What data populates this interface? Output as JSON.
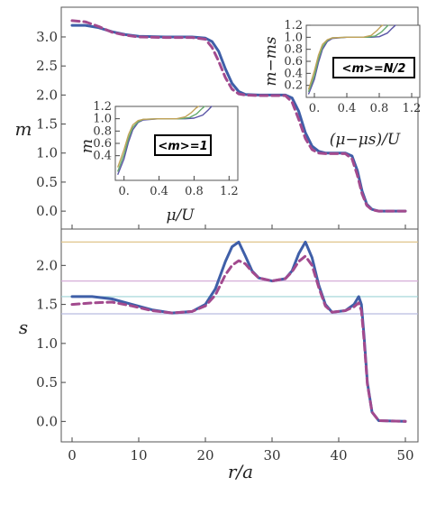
{
  "chart_data": [
    {
      "id": "top",
      "type": "line",
      "ylabel": "m",
      "xlim": [
        0,
        50
      ],
      "ylim": [
        -0.2,
        3.45
      ],
      "yticks": [
        "0.0",
        "0.5",
        "1.0",
        "1.5",
        "2.0",
        "2.5",
        "3.0"
      ],
      "series": [
        {
          "style": "solid",
          "color": "#3f5fa8",
          "points": [
            [
              0,
              3.2
            ],
            [
              2,
              3.2
            ],
            [
              4,
              3.16
            ],
            [
              6,
              3.09
            ],
            [
              8,
              3.04
            ],
            [
              10,
              3.01
            ],
            [
              14,
              3.0
            ],
            [
              18,
              3.0
            ],
            [
              20,
              2.98
            ],
            [
              21,
              2.92
            ],
            [
              22,
              2.75
            ],
            [
              23,
              2.45
            ],
            [
              24,
              2.2
            ],
            [
              25,
              2.06
            ],
            [
              26,
              2.01
            ],
            [
              28,
              2.0
            ],
            [
              32,
              2.0
            ],
            [
              33,
              1.95
            ],
            [
              34,
              1.72
            ],
            [
              35,
              1.35
            ],
            [
              36,
              1.12
            ],
            [
              37,
              1.03
            ],
            [
              38,
              1.0
            ],
            [
              41,
              1.0
            ],
            [
              42,
              0.95
            ],
            [
              42.8,
              0.7
            ],
            [
              43.5,
              0.35
            ],
            [
              44.2,
              0.12
            ],
            [
              45,
              0.03
            ],
            [
              46,
              0.0
            ],
            [
              50,
              0.0
            ]
          ]
        },
        {
          "style": "dashed",
          "color": "#a24a8e",
          "points": [
            [
              0,
              3.28
            ],
            [
              2,
              3.26
            ],
            [
              4,
              3.18
            ],
            [
              6,
              3.08
            ],
            [
              8,
              3.03
            ],
            [
              10,
              3.0
            ],
            [
              14,
              2.99
            ],
            [
              18,
              2.99
            ],
            [
              20,
              2.96
            ],
            [
              21,
              2.82
            ],
            [
              22,
              2.58
            ],
            [
              23,
              2.3
            ],
            [
              24,
              2.1
            ],
            [
              25,
              2.02
            ],
            [
              26,
              2.0
            ],
            [
              28,
              1.99
            ],
            [
              32,
              1.99
            ],
            [
              33,
              1.88
            ],
            [
              34,
              1.58
            ],
            [
              35,
              1.25
            ],
            [
              36,
              1.06
            ],
            [
              37,
              1.0
            ],
            [
              38,
              0.99
            ],
            [
              41,
              0.99
            ],
            [
              42,
              0.9
            ],
            [
              42.8,
              0.62
            ],
            [
              43.5,
              0.3
            ],
            [
              44.2,
              0.1
            ],
            [
              45,
              0.02
            ],
            [
              46,
              0.0
            ],
            [
              50,
              0.0
            ]
          ]
        }
      ]
    },
    {
      "id": "bottom",
      "type": "line",
      "xlabel": "r/a",
      "ylabel": "s",
      "xlim": [
        0,
        50
      ],
      "ylim": [
        -0.1,
        2.42
      ],
      "xticks": [
        "0",
        "10",
        "20",
        "30",
        "40",
        "50"
      ],
      "yticks": [
        "0.0",
        "0.5",
        "1.0",
        "1.5",
        "2.0"
      ],
      "hlines": [
        {
          "y": 2.3,
          "color": "#e0c58a"
        },
        {
          "y": 1.8,
          "color": "#d6aed8"
        },
        {
          "y": 1.6,
          "color": "#9ed3d6"
        },
        {
          "y": 1.38,
          "color": "#b9bce0"
        }
      ],
      "series": [
        {
          "style": "solid",
          "color": "#3f5fa8",
          "points": [
            [
              0,
              1.6
            ],
            [
              3,
              1.6
            ],
            [
              6,
              1.57
            ],
            [
              9,
              1.5
            ],
            [
              12,
              1.43
            ],
            [
              15,
              1.39
            ],
            [
              18,
              1.41
            ],
            [
              20,
              1.5
            ],
            [
              21.5,
              1.7
            ],
            [
              23,
              2.05
            ],
            [
              24,
              2.24
            ],
            [
              25,
              2.3
            ],
            [
              26,
              2.12
            ],
            [
              27,
              1.93
            ],
            [
              28,
              1.84
            ],
            [
              30,
              1.8
            ],
            [
              32,
              1.83
            ],
            [
              33,
              1.93
            ],
            [
              34,
              2.15
            ],
            [
              35,
              2.3
            ],
            [
              36,
              2.1
            ],
            [
              37,
              1.75
            ],
            [
              38,
              1.5
            ],
            [
              39,
              1.4
            ],
            [
              41,
              1.42
            ],
            [
              42.3,
              1.5
            ],
            [
              43,
              1.6
            ],
            [
              43.4,
              1.5
            ],
            [
              43.8,
              1.1
            ],
            [
              44.3,
              0.5
            ],
            [
              45,
              0.12
            ],
            [
              46,
              0.01
            ],
            [
              50,
              0.0
            ]
          ]
        },
        {
          "style": "dashed",
          "color": "#a24a8e",
          "points": [
            [
              0,
              1.5
            ],
            [
              3,
              1.52
            ],
            [
              6,
              1.53
            ],
            [
              9,
              1.48
            ],
            [
              12,
              1.42
            ],
            [
              15,
              1.39
            ],
            [
              18,
              1.41
            ],
            [
              20,
              1.48
            ],
            [
              21.5,
              1.62
            ],
            [
              23,
              1.88
            ],
            [
              24,
              2.0
            ],
            [
              25,
              2.06
            ],
            [
              26,
              2.02
            ],
            [
              27,
              1.92
            ],
            [
              28,
              1.84
            ],
            [
              30,
              1.8
            ],
            [
              32,
              1.83
            ],
            [
              33,
              1.92
            ],
            [
              34,
              2.05
            ],
            [
              35,
              2.12
            ],
            [
              36,
              2.0
            ],
            [
              37,
              1.72
            ],
            [
              38,
              1.48
            ],
            [
              39,
              1.4
            ],
            [
              41,
              1.42
            ],
            [
              42.3,
              1.47
            ],
            [
              43,
              1.52
            ],
            [
              43.4,
              1.42
            ],
            [
              43.8,
              1.05
            ],
            [
              44.3,
              0.48
            ],
            [
              45,
              0.12
            ],
            [
              46,
              0.01
            ],
            [
              50,
              0.0
            ]
          ]
        }
      ]
    },
    {
      "id": "inset-left",
      "type": "line",
      "xlabel": "μ/U",
      "ylabel": "m",
      "annotation": "<m>=1",
      "xlim": [
        -0.1,
        1.3
      ],
      "ylim": [
        0,
        1.2
      ],
      "xticks": [
        "0.",
        "0.4",
        "0.8",
        "1.2"
      ],
      "yticks": [
        "0.4",
        "0.6",
        "0.8",
        "1.0",
        "1.2"
      ],
      "series": [
        {
          "color": "#5a55a6",
          "points": [
            [
              -0.07,
              0.1
            ],
            [
              0,
              0.35
            ],
            [
              0.05,
              0.62
            ],
            [
              0.1,
              0.82
            ],
            [
              0.16,
              0.94
            ],
            [
              0.22,
              0.98
            ],
            [
              0.4,
              1.0
            ],
            [
              0.7,
              1.0
            ],
            [
              0.8,
              1.01
            ],
            [
              0.9,
              1.06
            ],
            [
              0.96,
              1.14
            ],
            [
              1.0,
              1.2
            ]
          ]
        },
        {
          "color": "#66aa6e",
          "points": [
            [
              -0.07,
              0.15
            ],
            [
              0,
              0.42
            ],
            [
              0.05,
              0.68
            ],
            [
              0.1,
              0.86
            ],
            [
              0.16,
              0.95
            ],
            [
              0.22,
              0.99
            ],
            [
              0.4,
              1.0
            ],
            [
              0.65,
              1.0
            ],
            [
              0.75,
              1.02
            ],
            [
              0.83,
              1.08
            ],
            [
              0.88,
              1.15
            ],
            [
              0.92,
              1.2
            ]
          ]
        },
        {
          "color": "#c2a35a",
          "points": [
            [
              -0.07,
              0.22
            ],
            [
              0,
              0.5
            ],
            [
              0.05,
              0.74
            ],
            [
              0.1,
              0.9
            ],
            [
              0.16,
              0.97
            ],
            [
              0.22,
              0.99
            ],
            [
              0.4,
              1.0
            ],
            [
              0.6,
              1.0
            ],
            [
              0.7,
              1.03
            ],
            [
              0.77,
              1.1
            ],
            [
              0.82,
              1.17
            ],
            [
              0.85,
              1.2
            ]
          ]
        }
      ]
    },
    {
      "id": "inset-right",
      "type": "line",
      "xlabel": "(μ−μs)/U",
      "ylabel": "m−ms",
      "annotation": "<m>=N/2",
      "xlim": [
        -0.1,
        1.3
      ],
      "ylim": [
        0,
        1.2
      ],
      "xticks": [
        "0.",
        "0.4",
        "0.8",
        "1.2"
      ],
      "yticks": [
        "0.2",
        "0.4",
        "0.6",
        "0.8",
        "1.0",
        "1.2"
      ],
      "series": [
        {
          "color": "#5a55a6",
          "points": [
            [
              -0.07,
              0.06
            ],
            [
              0,
              0.3
            ],
            [
              0.05,
              0.58
            ],
            [
              0.1,
              0.8
            ],
            [
              0.16,
              0.93
            ],
            [
              0.22,
              0.98
            ],
            [
              0.4,
              1.0
            ],
            [
              0.7,
              1.0
            ],
            [
              0.8,
              1.01
            ],
            [
              0.9,
              1.07
            ],
            [
              0.96,
              1.15
            ],
            [
              1.0,
              1.2
            ]
          ]
        },
        {
          "color": "#66aa6e",
          "points": [
            [
              -0.07,
              0.1
            ],
            [
              0,
              0.36
            ],
            [
              0.05,
              0.64
            ],
            [
              0.1,
              0.84
            ],
            [
              0.16,
              0.95
            ],
            [
              0.22,
              0.99
            ],
            [
              0.4,
              1.0
            ],
            [
              0.65,
              1.0
            ],
            [
              0.75,
              1.02
            ],
            [
              0.83,
              1.09
            ],
            [
              0.88,
              1.16
            ],
            [
              0.91,
              1.2
            ]
          ]
        },
        {
          "color": "#c2a35a",
          "points": [
            [
              -0.07,
              0.14
            ],
            [
              0,
              0.44
            ],
            [
              0.05,
              0.7
            ],
            [
              0.1,
              0.88
            ],
            [
              0.16,
              0.96
            ],
            [
              0.22,
              0.99
            ],
            [
              0.4,
              1.0
            ],
            [
              0.6,
              1.0
            ],
            [
              0.7,
              1.03
            ],
            [
              0.77,
              1.11
            ],
            [
              0.82,
              1.18
            ],
            [
              0.84,
              1.2
            ]
          ]
        }
      ]
    }
  ]
}
